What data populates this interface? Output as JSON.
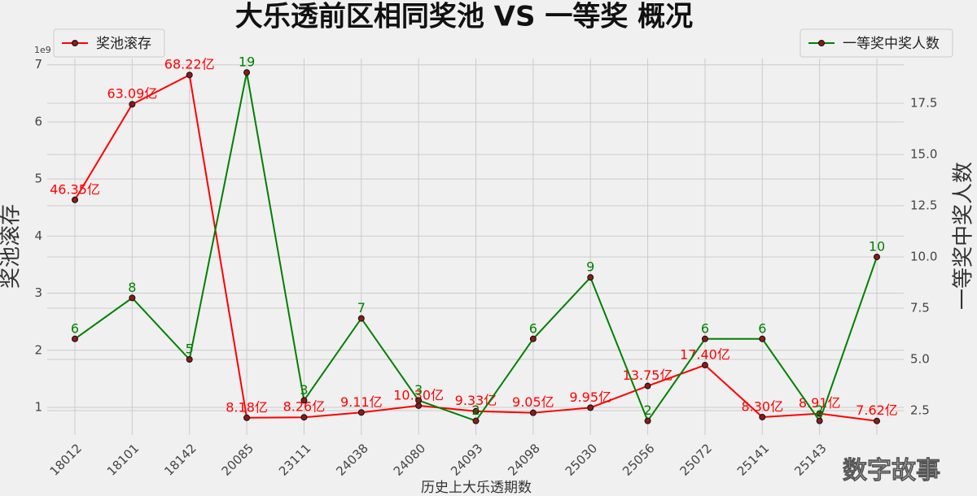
{
  "chart_data": {
    "type": "line",
    "title": "大乐透前区相同奖池 VS 一等奖 概况",
    "x_label": "历史上大乐透期数",
    "y_label": "奖池滚存",
    "y2_label": "一等奖中奖人数",
    "y_offset_text": "1e9",
    "categories": [
      "18012",
      "18101",
      "18142",
      "20085",
      "23111",
      "24038",
      "24080",
      "24093",
      "24098",
      "25030",
      "25056",
      "25072",
      "25141",
      "25143",
      null
    ],
    "series": [
      {
        "name": "奖池滚存",
        "color": "#ff0000",
        "legend": "upper left",
        "values": [
          4.635,
          6.309,
          6.822,
          0.818,
          0.826,
          0.911,
          1.03,
          0.933,
          0.905,
          0.995,
          1.375,
          1.74,
          0.83,
          0.891,
          0.762
        ],
        "value_labels": [
          "46.35亿",
          "63.09亿",
          "68.22亿",
          "8.18亿",
          "8.26亿",
          "9.11亿",
          "10.30亿",
          "9.33亿",
          "9.05亿",
          "9.95亿",
          "13.75亿",
          "17.40亿",
          "8.30亿",
          "8.91亿",
          "7.62亿"
        ]
      },
      {
        "name": "一等奖中奖人数",
        "color": "#008000",
        "axis": "y2",
        "legend": "upper right",
        "values": [
          6,
          8,
          5,
          19,
          3,
          7,
          3,
          2,
          6,
          9,
          2,
          6,
          6,
          2,
          10
        ]
      }
    ],
    "marker_color": "#8b1a1a",
    "ylim": [
      0.516,
      7.11
    ],
    "yticks": [
      1,
      2,
      3,
      4,
      5,
      6,
      7
    ],
    "y2lim": [
      1.31,
      19.68
    ],
    "y2ticks": [
      2.5,
      {
        "value": 5,
        "label": "5.0"
      },
      7.5,
      {
        "value": 10,
        "label": "10.0"
      },
      12.5,
      {
        "value": 15,
        "label": "15.0"
      },
      17.5
    ],
    "grid": true
  },
  "watermark": "数字故事"
}
